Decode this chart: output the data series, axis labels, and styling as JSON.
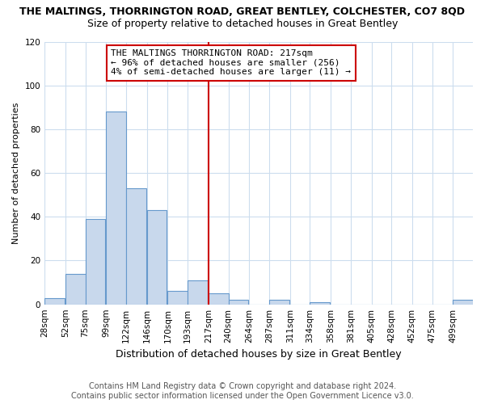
{
  "title": "THE MALTINGS, THORRINGTON ROAD, GREAT BENTLEY, COLCHESTER, CO7 8QD",
  "subtitle": "Size of property relative to detached houses in Great Bentley",
  "xlabel": "Distribution of detached houses by size in Great Bentley",
  "ylabel": "Number of detached properties",
  "footer_line1": "Contains HM Land Registry data © Crown copyright and database right 2024.",
  "footer_line2": "Contains public sector information licensed under the Open Government Licence v3.0.",
  "bar_color": "#c8d8ec",
  "bar_edge_color": "#6699cc",
  "grid_color": "#ccddee",
  "vline_color": "#cc0000",
  "vline_x": 217,
  "annotation_box_color": "#cc0000",
  "annotation_text_line1": "THE MALTINGS THORRINGTON ROAD: 217sqm",
  "annotation_text_line2": "← 96% of detached houses are smaller (256)",
  "annotation_text_line3": "4% of semi-detached houses are larger (11) →",
  "bins": [
    28,
    52,
    75,
    99,
    122,
    146,
    170,
    193,
    217,
    240,
    264,
    287,
    311,
    334,
    358,
    381,
    405,
    428,
    452,
    475,
    499
  ],
  "values": [
    3,
    14,
    39,
    88,
    53,
    43,
    6,
    11,
    5,
    2,
    0,
    2,
    0,
    1,
    0,
    0,
    0,
    0,
    0,
    0,
    2
  ],
  "bin_width": 23,
  "ylim": [
    0,
    120
  ],
  "yticks": [
    0,
    20,
    40,
    60,
    80,
    100,
    120
  ],
  "background_color": "#ffffff",
  "title_fontsize": 9,
  "subtitle_fontsize": 9,
  "xlabel_fontsize": 9,
  "ylabel_fontsize": 8,
  "tick_fontsize": 7.5,
  "footer_fontsize": 7,
  "annotation_fontsize": 8
}
